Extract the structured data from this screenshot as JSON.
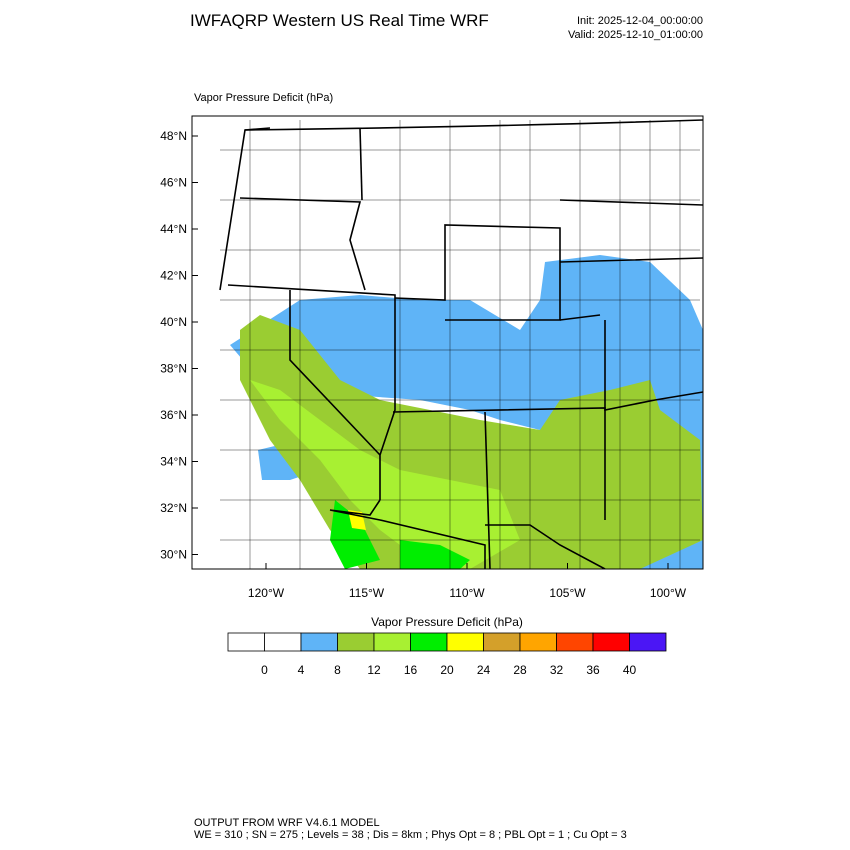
{
  "header": {
    "title": "IWFAQRP Western US Real Time WRF",
    "init": "Init: 2025-12-04_00:00:00",
    "valid": "Valid: 2025-12-10_01:00:00"
  },
  "map": {
    "field_label": "Vapor Pressure Deficit   (hPa)",
    "lat_labels": [
      "48°N",
      "46°N",
      "44°N",
      "42°N",
      "40°N",
      "38°N",
      "36°N",
      "34°N",
      "32°N",
      "30°N"
    ],
    "lon_labels": [
      "120°W",
      "115°W",
      "110°W",
      "105°W",
      "100°W"
    ]
  },
  "colorbar": {
    "title": "Vapor Pressure Deficit  (hPa)",
    "colors": [
      "#ffffff",
      "#ffffff",
      "#5fb4f7",
      "#9acd32",
      "#a8f032",
      "#00ee00",
      "#ffff00",
      "#d4a02a",
      "#ffa500",
      "#ff4500",
      "#ff0000",
      "#4b16f5"
    ],
    "labels": [
      0,
      4,
      8,
      12,
      16,
      20,
      24,
      28,
      32,
      36,
      40
    ]
  },
  "footer": {
    "line1": "OUTPUT FROM WRF V4.6.1 MODEL",
    "line2": "WE = 310 ; SN = 275 ; Levels = 38 ; Dis = 8km ; Phys Opt = 8 ; PBL Opt = 1 ; Cu Opt = 3"
  }
}
